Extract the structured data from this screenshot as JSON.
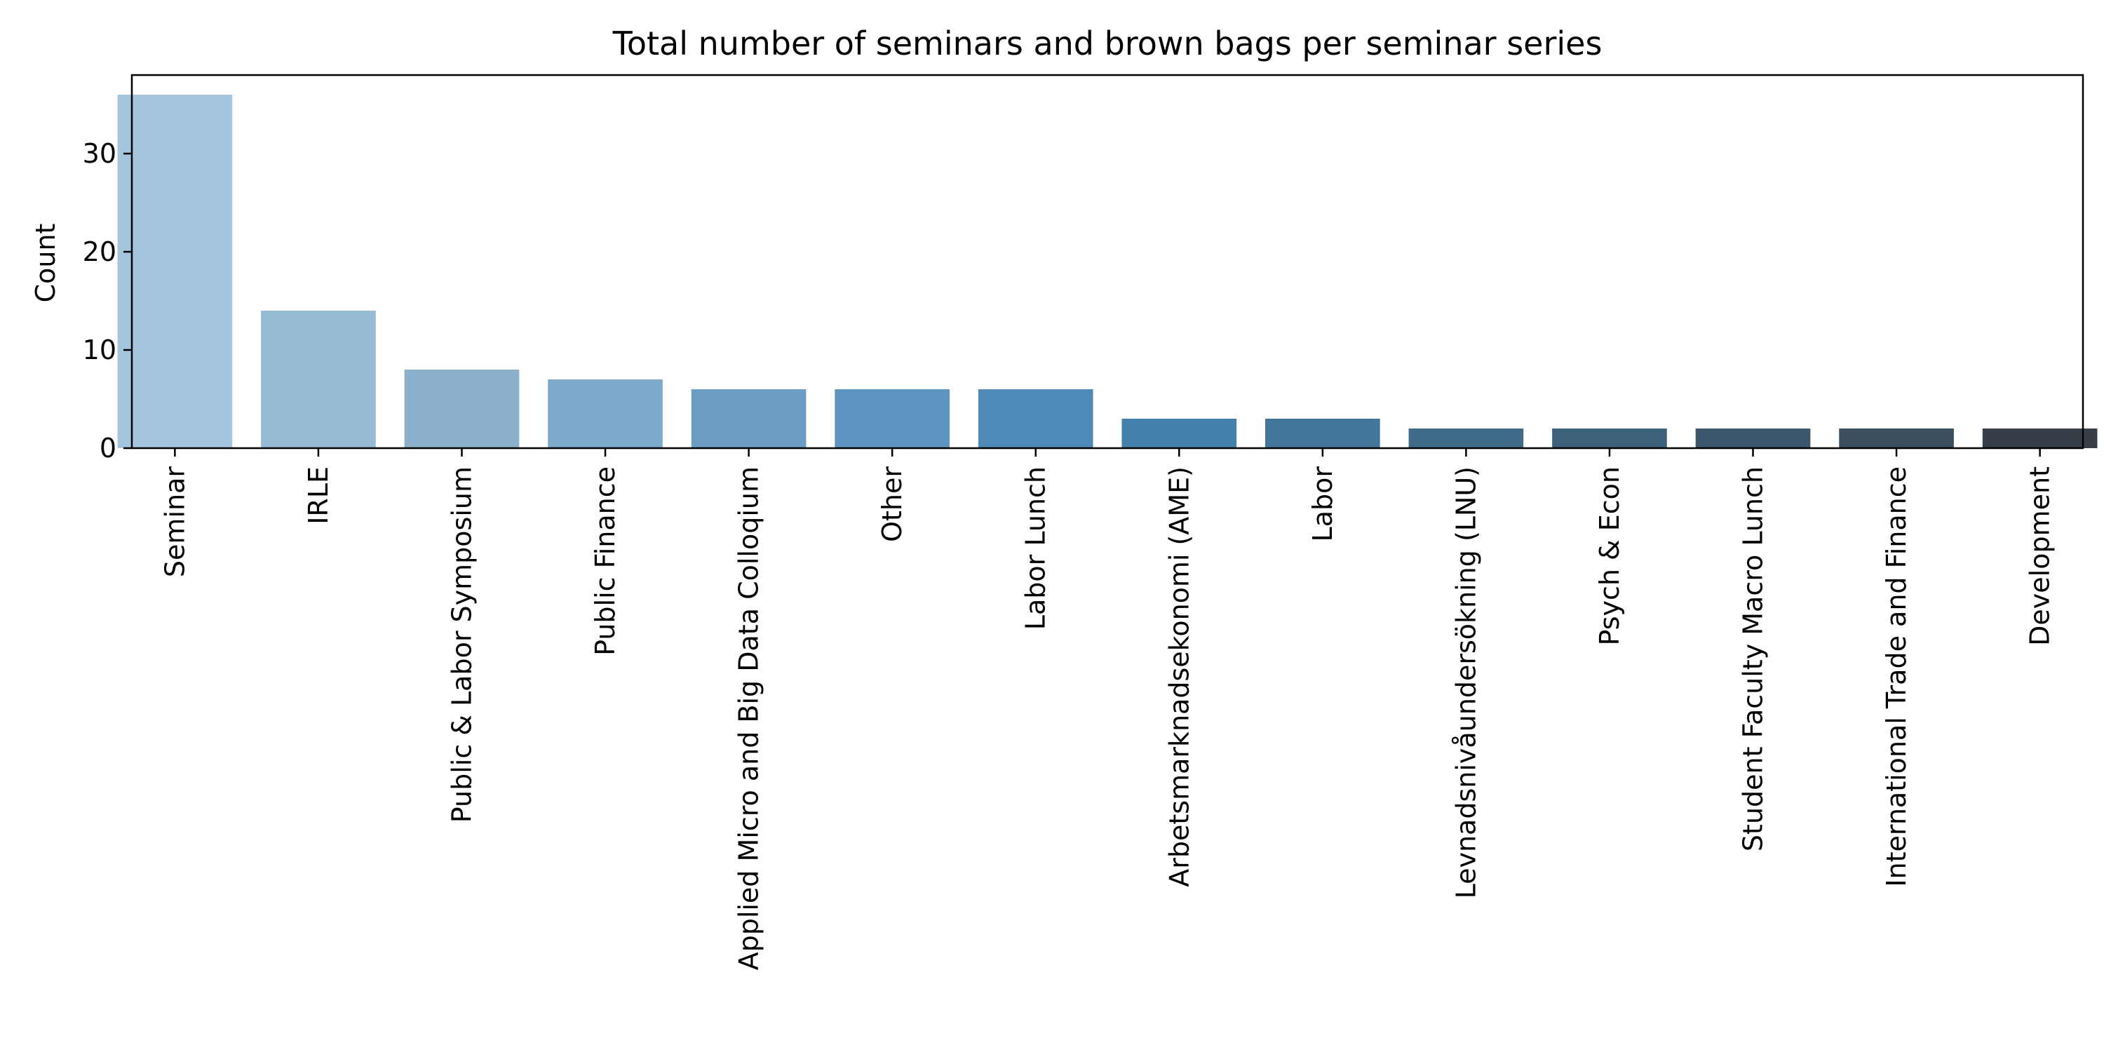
{
  "chart_data": {
    "type": "bar",
    "title": "Total number of seminars and brown bags per seminar series",
    "xlabel": "",
    "ylabel": "Count",
    "ylim": [
      0,
      38
    ],
    "yticks": [
      0,
      10,
      20,
      30
    ],
    "grid": false,
    "categories": [
      "Seminar",
      "IRLE",
      "Public & Labor Symposium",
      "Public Finance",
      "Applied Micro and Big Data Colloqium",
      "Other",
      "Labor Lunch",
      "Arbetsmarknadsekonomi (AME)",
      "Labor",
      "Levnadsnivåundersökning (LNU)",
      "Psych & Econ",
      "Student Faculty Macro Lunch",
      "International Trade and Finance",
      "Development"
    ],
    "values": [
      36,
      14,
      8,
      7,
      6,
      6,
      6,
      3,
      3,
      2,
      2,
      2,
      2,
      2
    ],
    "colors": [
      "#a3c5dd",
      "#97bbd5",
      "#8ab0cc",
      "#7ca8ca",
      "#6c9ec5",
      "#5d95c0",
      "#4e8ab8",
      "#4580ad",
      "#42759a",
      "#3f6a88",
      "#3e617b",
      "#3c576c",
      "#3a4e5d",
      "#363f48"
    ]
  }
}
